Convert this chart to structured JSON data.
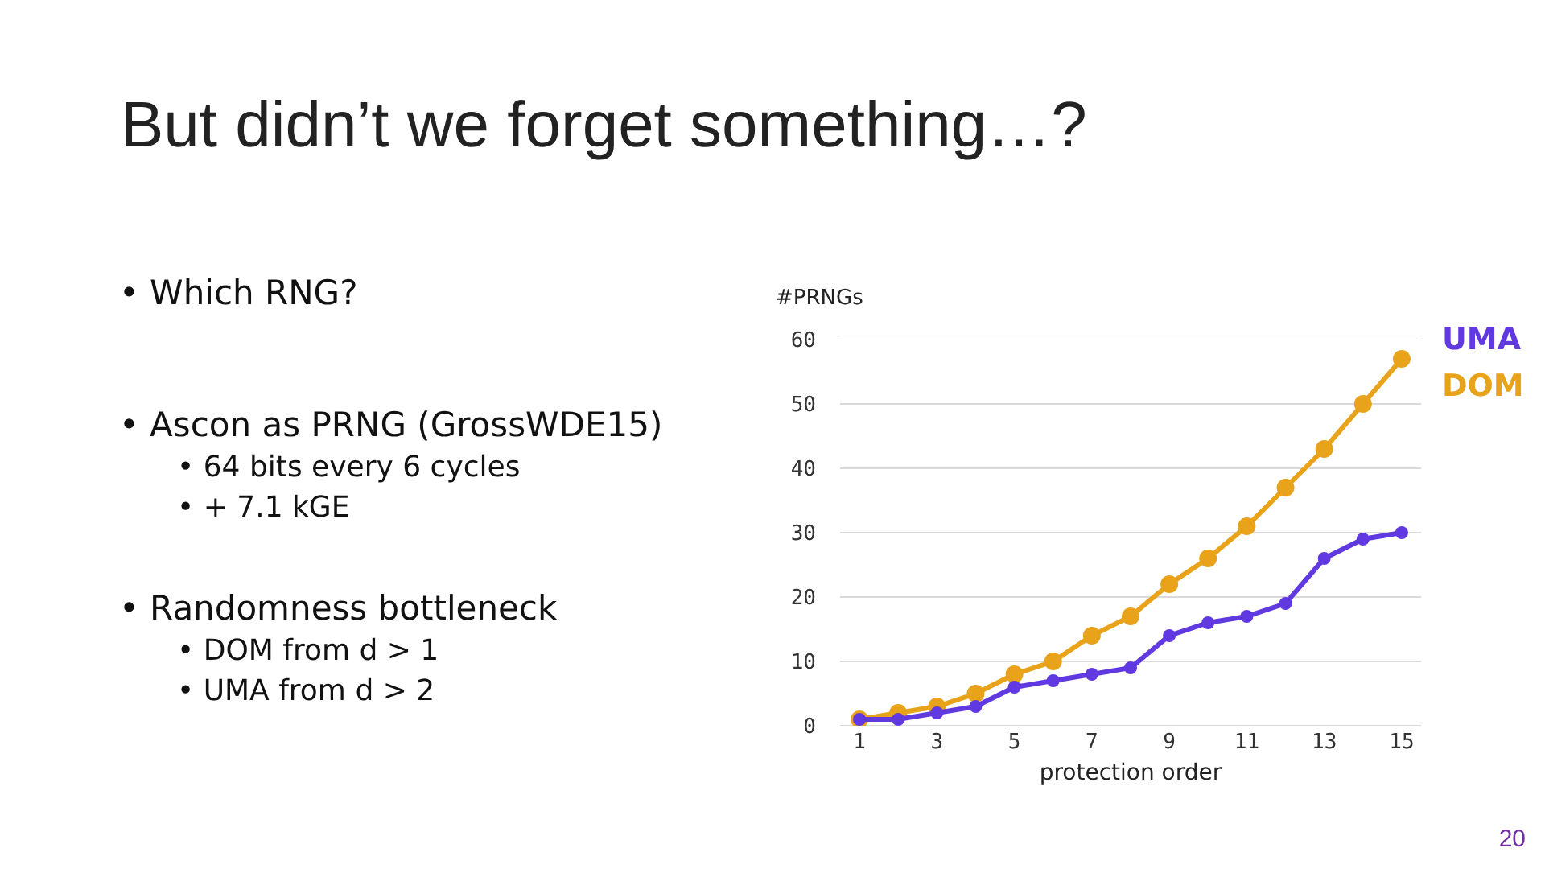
{
  "chart_data": {
    "type": "line",
    "title": "But didn’t we forget something…?",
    "ylabel": "#PRNGs",
    "xlabel": "protection order",
    "x": [
      1,
      2,
      3,
      4,
      5,
      6,
      7,
      8,
      9,
      10,
      11,
      12,
      13,
      14,
      15
    ],
    "series": [
      {
        "name": "UMA",
        "color": "#6039e0",
        "values": [
          1,
          1,
          2,
          3,
          6,
          7,
          8,
          9,
          14,
          16,
          17,
          19,
          26,
          29,
          30
        ]
      },
      {
        "name": "DOM",
        "color": "#e8a31a",
        "values": [
          1,
          2,
          3,
          5,
          8,
          10,
          14,
          17,
          22,
          26,
          31,
          37,
          43,
          50,
          57
        ]
      }
    ],
    "xlim": [
      0.5,
      15.5
    ],
    "xticks": [
      1,
      3,
      5,
      7,
      9,
      11,
      13,
      15
    ],
    "ylim": [
      0,
      60
    ],
    "yticks": [
      0,
      10,
      20,
      30,
      40,
      50,
      60
    ],
    "grid": "y",
    "marker": "circle",
    "line_style": "solid",
    "annotations": [
      "• Which RNG?",
      "• Ascon as PRNG (GrossWDE15)\n• 64 bits every 6 cycles\n• + 7.1 kGE",
      "• Randomness bottleneck\n• DOM from d > 1\n• UMA from d > 2",
      "20"
    ]
  }
}
